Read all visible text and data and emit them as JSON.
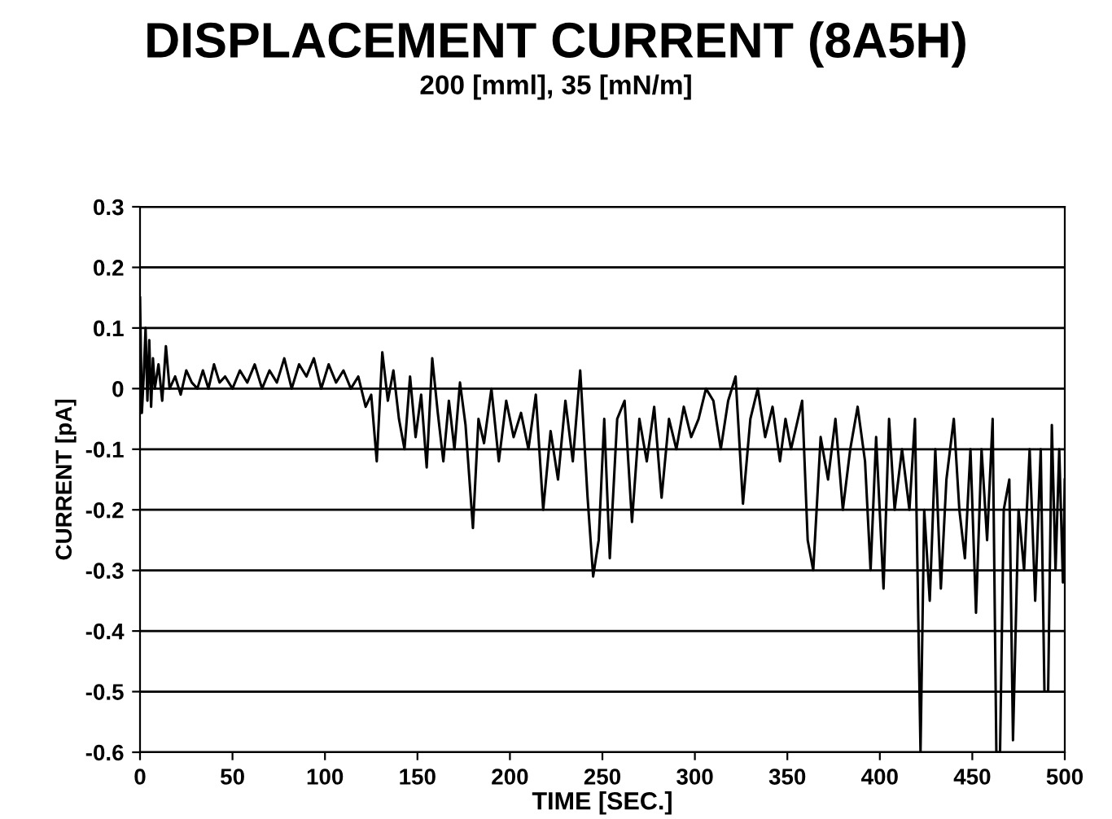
{
  "chart_data": {
    "type": "line",
    "title": "DISPLACEMENT CURRENT (8A5H)",
    "subtitle": "200 [mml], 35 [mN/m]",
    "xlabel": "TIME [SEC.]",
    "ylabel": "CURRENT [pA]",
    "xlim": [
      0,
      500
    ],
    "ylim": [
      -0.6,
      0.3
    ],
    "xticks": [
      0,
      50,
      100,
      150,
      200,
      250,
      300,
      350,
      400,
      450,
      500
    ],
    "yticks": [
      0.3,
      0.2,
      0.1,
      0,
      -0.1,
      -0.2,
      -0.3,
      -0.4,
      -0.5,
      -0.6
    ],
    "grid": "y",
    "line_style": "solid",
    "series": [
      {
        "color": "#000000",
        "x": [
          0,
          1,
          2,
          3,
          4,
          5,
          6,
          7,
          8,
          10,
          12,
          14,
          16,
          19,
          22,
          25,
          28,
          31,
          34,
          37,
          40,
          43,
          46,
          50,
          54,
          58,
          62,
          66,
          70,
          74,
          78,
          82,
          86,
          90,
          94,
          98,
          102,
          106,
          110,
          114,
          118,
          122,
          125,
          128,
          131,
          134,
          137,
          140,
          143,
          146,
          149,
          152,
          155,
          158,
          161,
          164,
          167,
          170,
          173,
          176,
          180,
          183,
          186,
          190,
          194,
          198,
          202,
          206,
          210,
          214,
          218,
          222,
          226,
          230,
          234,
          238,
          242,
          245,
          248,
          251,
          254,
          258,
          262,
          266,
          270,
          274,
          278,
          282,
          286,
          290,
          294,
          298,
          302,
          306,
          310,
          314,
          318,
          322,
          326,
          330,
          334,
          338,
          342,
          346,
          349,
          352,
          355,
          358,
          361,
          364,
          368,
          372,
          376,
          380,
          384,
          388,
          392,
          395,
          398,
          402,
          405,
          408,
          412,
          416,
          419,
          422,
          424,
          427,
          430,
          433,
          436,
          440,
          443,
          446,
          449,
          452,
          455,
          458,
          461,
          463,
          465,
          467,
          470,
          472,
          475,
          478,
          481,
          484,
          487,
          489,
          491,
          493,
          495,
          497,
          499,
          500
        ],
        "values": [
          0.15,
          -0.04,
          0.02,
          0.1,
          -0.02,
          0.08,
          -0.03,
          0.05,
          0.0,
          0.04,
          -0.02,
          0.07,
          0.0,
          0.02,
          -0.01,
          0.03,
          0.01,
          0.0,
          0.03,
          0.0,
          0.04,
          0.01,
          0.02,
          0.0,
          0.03,
          0.01,
          0.04,
          0.0,
          0.03,
          0.01,
          0.05,
          0.0,
          0.04,
          0.02,
          0.05,
          0.0,
          0.04,
          0.01,
          0.03,
          0.0,
          0.02,
          -0.03,
          -0.01,
          -0.12,
          0.06,
          -0.02,
          0.03,
          -0.05,
          -0.1,
          0.02,
          -0.08,
          -0.01,
          -0.13,
          0.05,
          -0.04,
          -0.12,
          -0.02,
          -0.1,
          0.01,
          -0.06,
          -0.23,
          -0.05,
          -0.09,
          0.0,
          -0.12,
          -0.02,
          -0.08,
          -0.04,
          -0.1,
          -0.01,
          -0.2,
          -0.07,
          -0.15,
          -0.02,
          -0.12,
          0.03,
          -0.18,
          -0.31,
          -0.25,
          -0.05,
          -0.28,
          -0.05,
          -0.02,
          -0.22,
          -0.05,
          -0.12,
          -0.03,
          -0.18,
          -0.05,
          -0.1,
          -0.03,
          -0.08,
          -0.05,
          0.0,
          -0.02,
          -0.1,
          -0.02,
          0.02,
          -0.19,
          -0.05,
          0.0,
          -0.08,
          -0.03,
          -0.12,
          -0.05,
          -0.1,
          -0.06,
          -0.02,
          -0.25,
          -0.3,
          -0.08,
          -0.15,
          -0.05,
          -0.2,
          -0.1,
          -0.03,
          -0.12,
          -0.3,
          -0.08,
          -0.33,
          -0.05,
          -0.2,
          -0.1,
          -0.2,
          -0.05,
          -0.6,
          -0.2,
          -0.35,
          -0.1,
          -0.33,
          -0.15,
          -0.05,
          -0.2,
          -0.28,
          -0.1,
          -0.37,
          -0.1,
          -0.25,
          -0.05,
          -0.6,
          -0.6,
          -0.2,
          -0.15,
          -0.58,
          -0.2,
          -0.3,
          -0.1,
          -0.35,
          -0.1,
          -0.5,
          -0.5,
          -0.06,
          -0.3,
          -0.1,
          -0.32,
          -0.15
        ]
      }
    ]
  }
}
